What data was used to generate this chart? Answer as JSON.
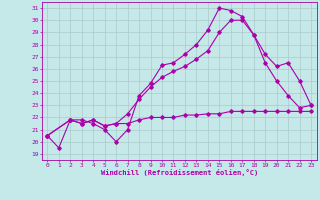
{
  "xlabel": "Windchill (Refroidissement éolien,°C)",
  "xlim": [
    -0.5,
    23.5
  ],
  "ylim": [
    18.5,
    31.5
  ],
  "yticks": [
    19,
    20,
    21,
    22,
    23,
    24,
    25,
    26,
    27,
    28,
    29,
    30,
    31
  ],
  "xticks": [
    0,
    1,
    2,
    3,
    4,
    5,
    6,
    7,
    8,
    9,
    10,
    11,
    12,
    13,
    14,
    15,
    16,
    17,
    18,
    19,
    20,
    21,
    22,
    23
  ],
  "bg_color": "#c5e8e8",
  "line_color": "#aa00aa",
  "grid_color": "#b0c8c8",
  "line1_x": [
    0,
    1,
    2,
    3,
    4,
    5,
    6,
    7,
    8,
    9,
    10,
    11,
    12,
    13,
    14,
    15,
    16,
    17,
    18,
    19,
    20,
    21,
    22,
    23
  ],
  "line1_y": [
    20.5,
    19.5,
    21.8,
    21.8,
    21.5,
    21.0,
    20.0,
    21.0,
    23.8,
    24.8,
    26.3,
    26.5,
    27.2,
    28.0,
    29.2,
    31.0,
    30.8,
    30.3,
    28.8,
    26.5,
    25.0,
    23.8,
    22.8,
    23.0
  ],
  "line2_x": [
    0,
    2,
    3,
    4,
    5,
    6,
    7,
    8,
    9,
    10,
    11,
    12,
    13,
    14,
    15,
    16,
    17,
    18,
    19,
    20,
    21,
    22,
    23
  ],
  "line2_y": [
    20.5,
    21.8,
    21.5,
    21.8,
    21.3,
    21.5,
    22.3,
    23.5,
    24.5,
    25.3,
    25.8,
    26.2,
    26.8,
    27.5,
    29.0,
    30.0,
    30.0,
    28.8,
    27.2,
    26.2,
    26.5,
    25.0,
    23.0
  ],
  "line3_x": [
    0,
    2,
    3,
    4,
    5,
    6,
    7,
    8,
    9,
    10,
    11,
    12,
    13,
    14,
    15,
    16,
    17,
    18,
    19,
    20,
    21,
    22,
    23
  ],
  "line3_y": [
    20.5,
    21.8,
    21.5,
    21.8,
    21.3,
    21.5,
    21.5,
    21.8,
    22.0,
    22.0,
    22.0,
    22.2,
    22.2,
    22.3,
    22.3,
    22.5,
    22.5,
    22.5,
    22.5,
    22.5,
    22.5,
    22.5,
    22.5
  ]
}
